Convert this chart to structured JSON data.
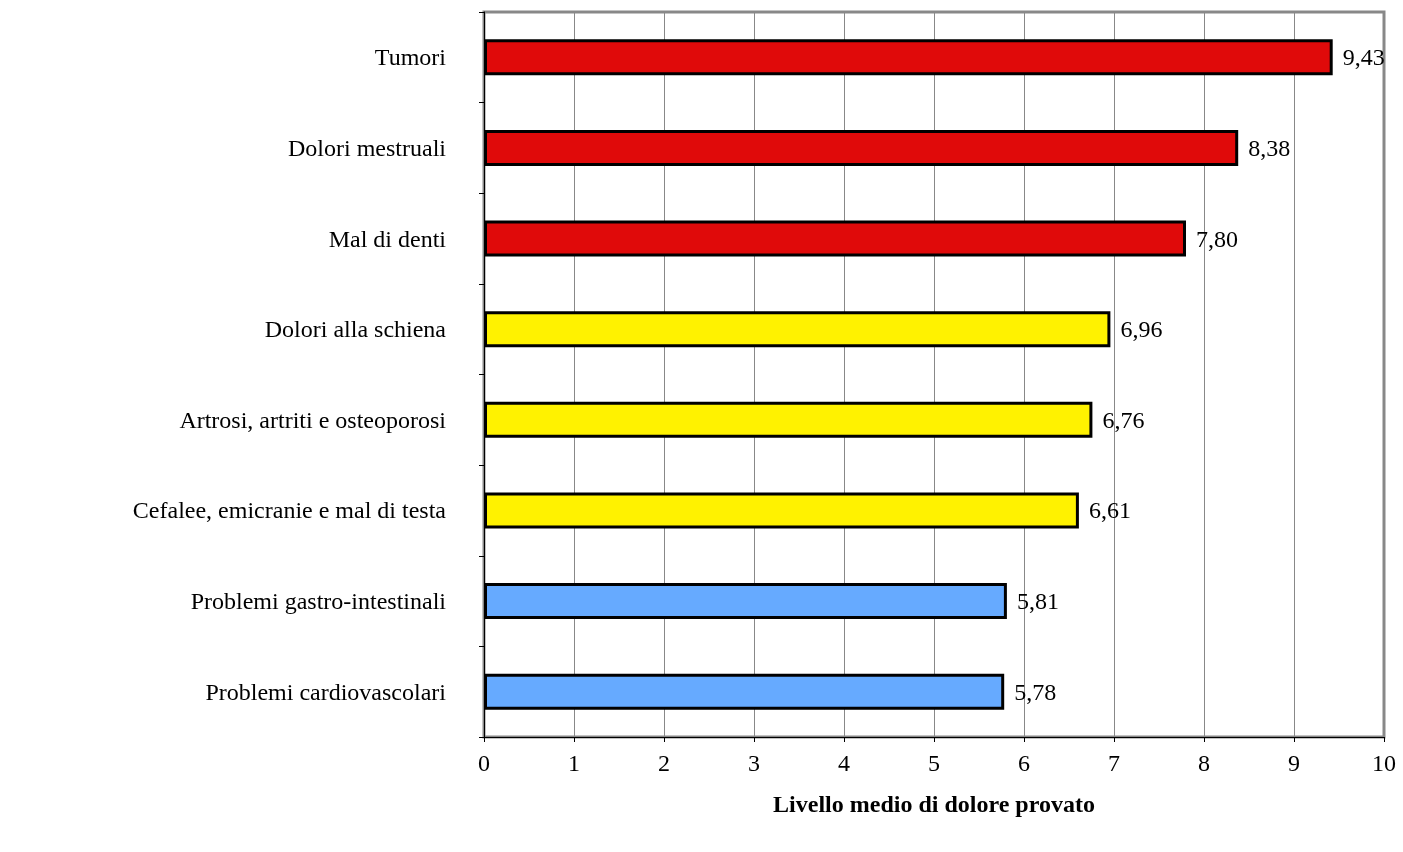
{
  "chart_data": {
    "type": "bar",
    "orientation": "horizontal",
    "xlabel": "Livello medio di dolore provato",
    "categories": [
      "Tumori",
      "Dolori mestruali",
      "Mal di denti",
      "Dolori alla schiena",
      "Artrosi, artriti e osteoporosi",
      "Cefalee, emicranie e mal di testa",
      "Problemi gastro-intestinali",
      "Problemi cardiovascolari"
    ],
    "values": [
      9.43,
      8.38,
      7.8,
      6.96,
      6.76,
      6.61,
      5.81,
      5.78
    ],
    "colors": [
      "#e00a0a",
      "#e00a0a",
      "#e00a0a",
      "#fff200",
      "#fff200",
      "#fff200",
      "#66aaff",
      "#66aaff"
    ],
    "value_labels": [
      "9,43",
      "8,38",
      "7,80",
      "6,96",
      "6,76",
      "6,61",
      "5,81",
      "5,78"
    ],
    "xlim": [
      0,
      10
    ],
    "xticks": [
      0,
      1,
      2,
      3,
      4,
      5,
      6,
      7,
      8,
      9,
      10
    ],
    "grid": "x"
  }
}
